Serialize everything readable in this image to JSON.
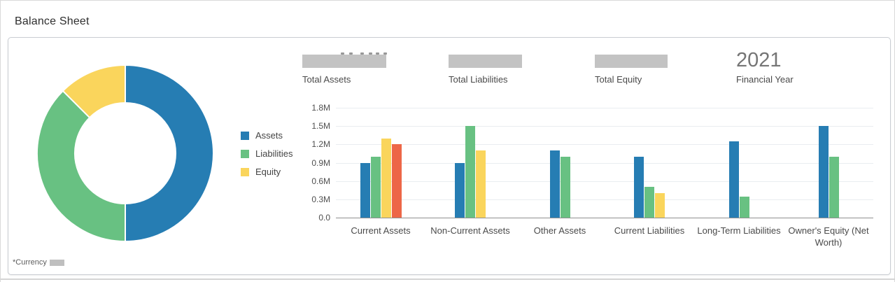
{
  "header": {
    "title": "Balance Sheet"
  },
  "kpis": [
    {
      "label": "Total Assets",
      "value": "",
      "value_redacted": true
    },
    {
      "label": "Total Liabilities",
      "value": "",
      "value_redacted": true
    },
    {
      "label": "Total Equity",
      "value": "",
      "value_redacted": true
    },
    {
      "label": "Financial Year",
      "value": "2021",
      "value_redacted": false
    }
  ],
  "footnote": {
    "label": "*Currency",
    "value_redacted": true
  },
  "colors": {
    "assets": "#267db3",
    "liabilities": "#68c182",
    "equity": "#fad55c",
    "extra_red": "#ed6647",
    "redaction_gray": "#c3c3c3"
  },
  "chart_data": [
    {
      "type": "pie",
      "subtype": "donut",
      "labels": [
        "Assets",
        "Liabilities",
        "Equity"
      ],
      "values_pct": [
        50,
        37.5,
        12.5
      ],
      "colors": [
        "#267db3",
        "#68c182",
        "#fad55c"
      ],
      "hole_ratio": 0.57,
      "legend_position": "right-of-chart"
    },
    {
      "type": "bar",
      "categories": [
        "Current Assets",
        "Non-Current Assets",
        "Other Assets",
        "Current Liabilities",
        "Long-Term Liabilities",
        "Owner's Equity (Net Worth)"
      ],
      "series": [
        {
          "name": "Assets",
          "color": "#267db3",
          "in_legend": true,
          "values": [
            0.9,
            0.9,
            1.1,
            1.0,
            1.25,
            1.5
          ]
        },
        {
          "name": "Liabilities",
          "color": "#68c182",
          "in_legend": true,
          "values": [
            1.0,
            1.5,
            1.0,
            0.5,
            0.35,
            1.0
          ]
        },
        {
          "name": "Equity",
          "color": "#fad55c",
          "in_legend": true,
          "values": [
            1.3,
            1.1,
            null,
            0.4,
            null,
            null
          ]
        },
        {
          "name": "unlabeled-red",
          "color": "#ed6647",
          "in_legend": false,
          "values": [
            1.2,
            null,
            null,
            null,
            null,
            null
          ]
        }
      ],
      "unit": "M",
      "ylim": [
        0,
        1.8
      ],
      "yticks": [
        0,
        0.3,
        0.6,
        0.9,
        1.2,
        1.5,
        1.8
      ],
      "ytick_labels": [
        "0.0",
        "0.3M",
        "0.6M",
        "0.9M",
        "1.2M",
        "1.5M",
        "1.8M"
      ],
      "grid": true
    }
  ]
}
